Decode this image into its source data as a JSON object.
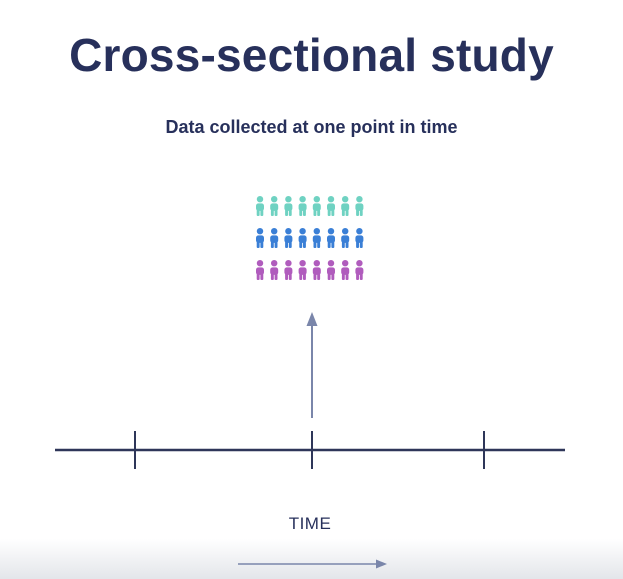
{
  "title": "Cross-sectional study",
  "subtitle": "Data collected at one point in time",
  "axis_label": "TIME",
  "colors": {
    "text": "#27305b",
    "timeline": "#2e3659",
    "arrow": "#7a86aa",
    "people_row_1": "#6fd2c2",
    "people_row_2": "#3a7fd6",
    "people_row_3": "#b05cbd"
  },
  "icons": {
    "person": "person-icon",
    "up_arrow": "up-arrow-icon",
    "right_arrow": "right-arrow-icon"
  },
  "people_grid": {
    "rows": 3,
    "columns": 8
  },
  "timeline": {
    "tick_count": 3
  }
}
